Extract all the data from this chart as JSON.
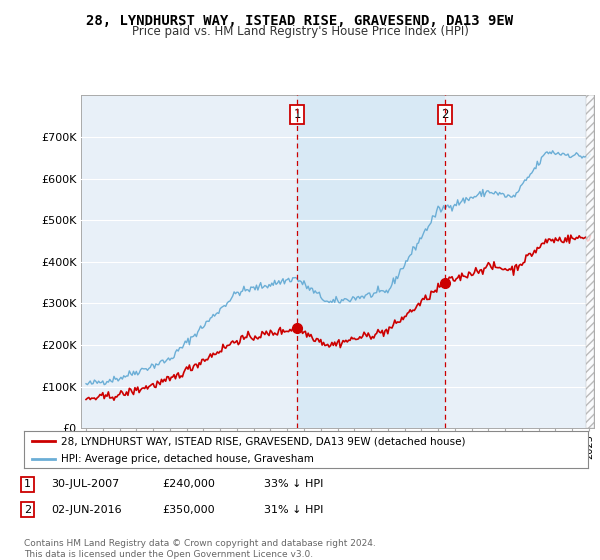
{
  "title": "28, LYNDHURST WAY, ISTEAD RISE, GRAVESEND, DA13 9EW",
  "subtitle": "Price paid vs. HM Land Registry's House Price Index (HPI)",
  "legend_label_red": "28, LYNDHURST WAY, ISTEAD RISE, GRAVESEND, DA13 9EW (detached house)",
  "legend_label_blue": "HPI: Average price, detached house, Gravesham",
  "sale1_date": "30-JUL-2007",
  "sale1_price": "£240,000",
  "sale1_info": "33% ↓ HPI",
  "sale2_date": "02-JUN-2016",
  "sale2_price": "£350,000",
  "sale2_info": "31% ↓ HPI",
  "footer": "Contains HM Land Registry data © Crown copyright and database right 2024.\nThis data is licensed under the Open Government Licence v3.0.",
  "sale1_year": 2007.58,
  "sale1_value": 240000,
  "sale2_year": 2016.42,
  "sale2_value": 350000,
  "hpi_color": "#6baed6",
  "price_color": "#cc0000",
  "vline_color": "#cc0000",
  "shade_color": "#d6e8f5",
  "plot_bg": "#e8f0f8",
  "ylim": [
    0,
    800000
  ],
  "xlim_start": 1994.7,
  "xlim_end": 2025.3
}
